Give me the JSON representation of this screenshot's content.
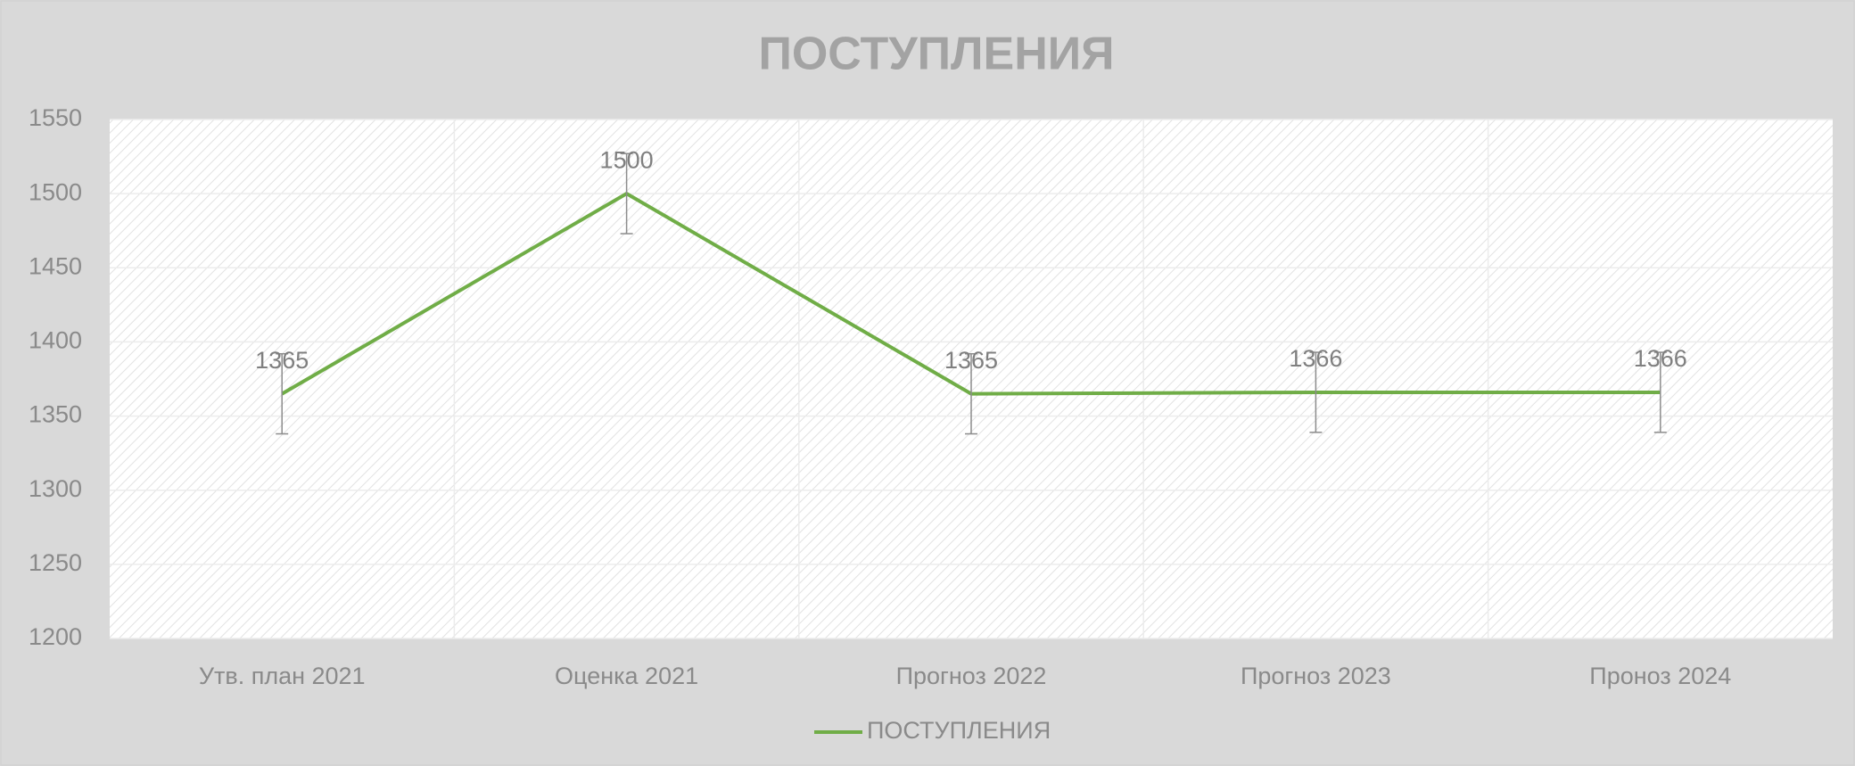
{
  "chart_data": {
    "type": "line",
    "title": "ПОСТУПЛЕНИЯ",
    "categories": [
      "Утв. план 2021",
      "Оценка 2021",
      "Прогноз 2022",
      "Прогноз 2023",
      "Проноз 2024"
    ],
    "series": [
      {
        "name": "ПОСТУПЛЕНИЯ",
        "color": "#70ad47",
        "values": [
          1365,
          1500,
          1365,
          1366,
          1366
        ],
        "errors": [
          27,
          27,
          27,
          27,
          27
        ]
      }
    ],
    "ylim": [
      1200,
      1550
    ],
    "yticks": [
      1200,
      1250,
      1300,
      1350,
      1400,
      1450,
      1500,
      1550
    ],
    "grid": true,
    "legend": "bottom"
  }
}
